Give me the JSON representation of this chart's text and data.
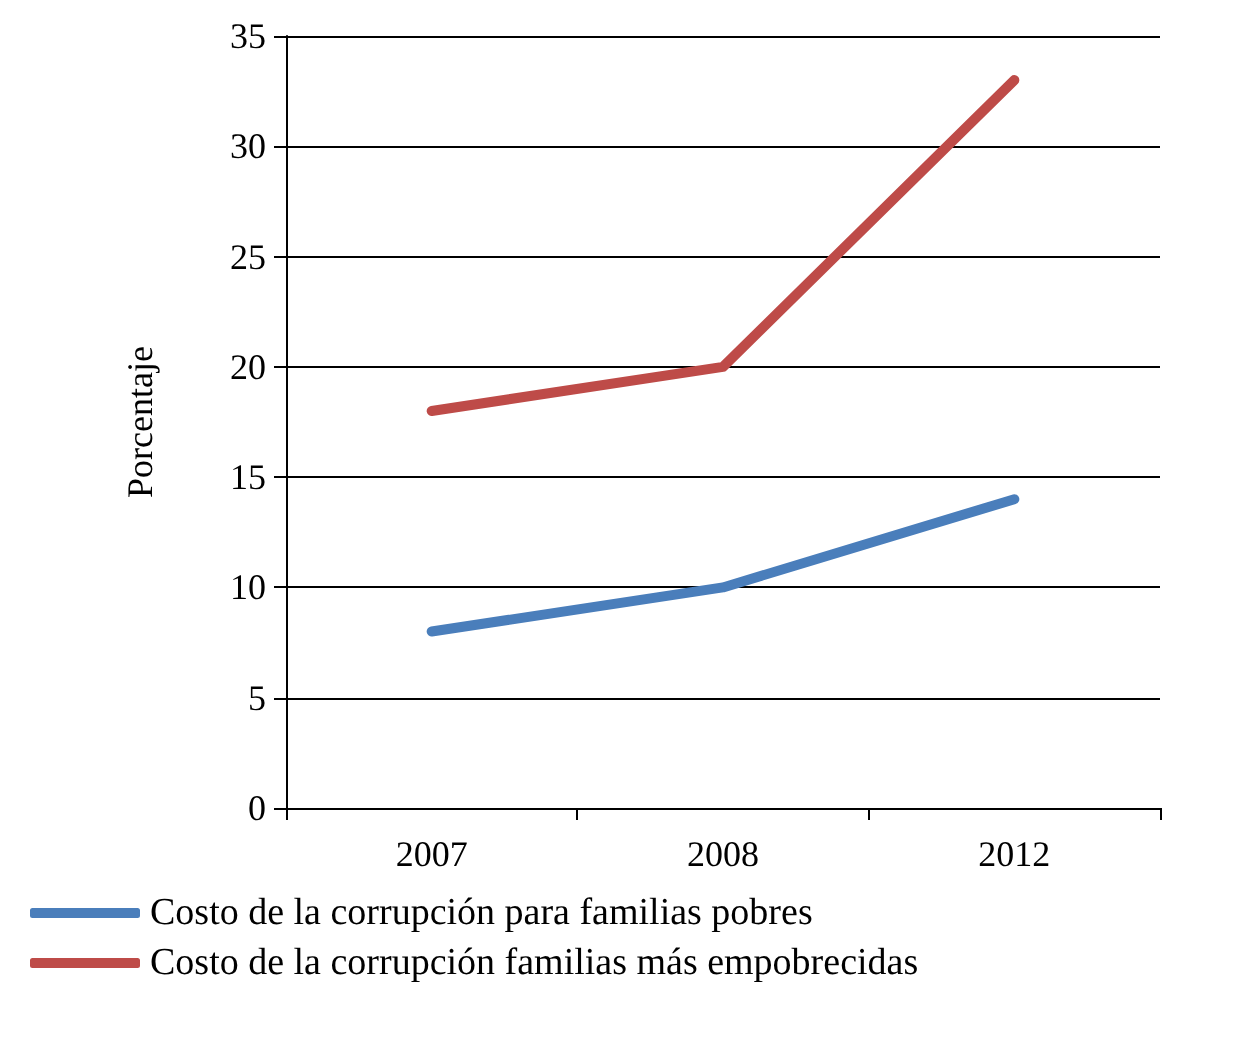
{
  "chart_data": {
    "type": "line",
    "ylabel": "Porcentaje",
    "categories": [
      "2007",
      "2008",
      "2012"
    ],
    "series": [
      {
        "name": "Costo de la corrupción para familias pobres",
        "color": "#4a7ebb",
        "values": [
          8,
          10,
          14
        ]
      },
      {
        "name": "Costo de la corrupción familias más empobrecidas",
        "color": "#be4b48",
        "values": [
          18,
          20,
          33
        ]
      }
    ],
    "ylim": [
      0,
      35
    ],
    "yticks": [
      0,
      5,
      10,
      15,
      20,
      25,
      30,
      35
    ],
    "grid": "y",
    "legend": "bottom",
    "marker": "none",
    "line_style": "solid"
  }
}
